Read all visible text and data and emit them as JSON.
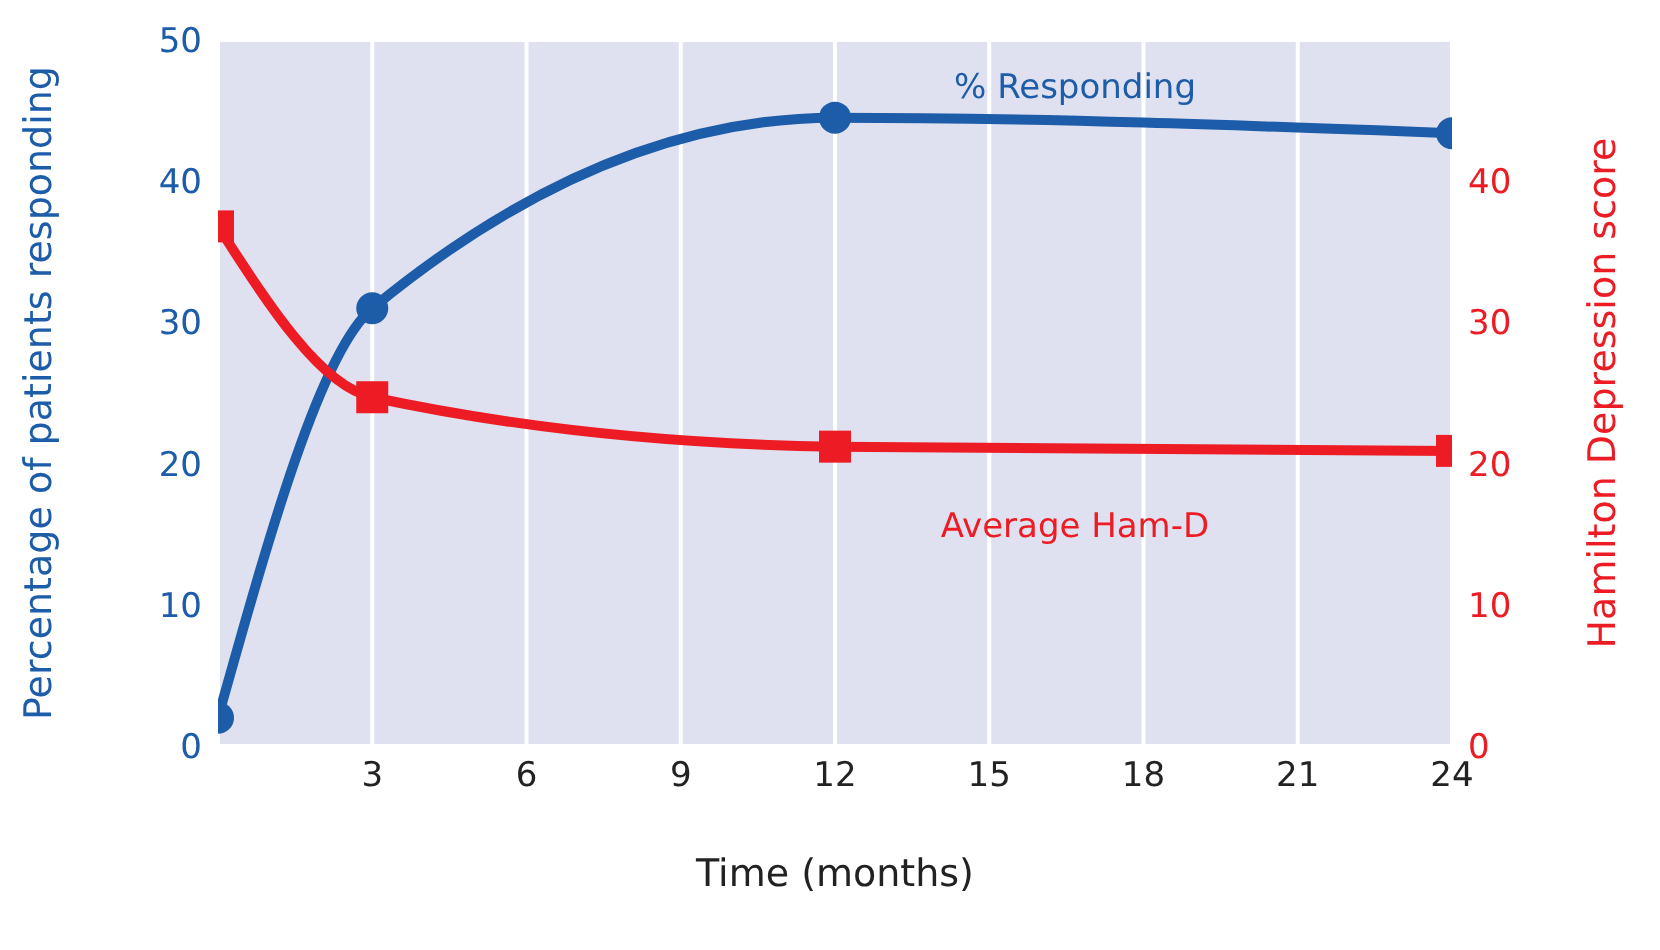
{
  "chart_data": {
    "type": "line",
    "xlabel": "Time (months)",
    "ylabel": "Percentage of patients responding",
    "y2label": "Hamilton Depression score",
    "x": [
      0,
      3,
      12,
      24
    ],
    "series": [
      {
        "name": "% Responding",
        "color": "#1d5ca8",
        "values": [
          2,
          31,
          44.5,
          43.4
        ],
        "marker": "circle"
      },
      {
        "name": "Average Ham-D",
        "color": "#ed1c24",
        "values": [
          36.8,
          24.7,
          21.2,
          20.9
        ],
        "marker": "square",
        "axis": "y2"
      }
    ],
    "xlim": [
      0,
      24
    ],
    "xticks": [
      3,
      6,
      9,
      12,
      15,
      18,
      21,
      24
    ],
    "ylim": [
      0,
      50
    ],
    "yticks": [
      0,
      10,
      20,
      30,
      40,
      50
    ],
    "y2lim": [
      0,
      50
    ],
    "y2ticks": [
      0,
      10,
      20,
      30,
      40
    ],
    "grid": true,
    "line_style": "solid"
  }
}
